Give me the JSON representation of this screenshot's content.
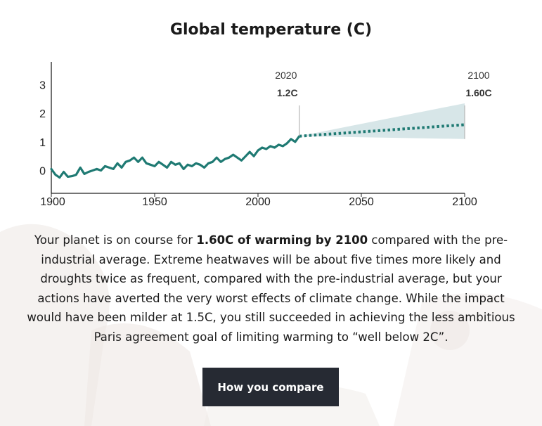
{
  "title": "Global temperature (C)",
  "colors": {
    "series": "#1f7a73",
    "band": "#d3e3e5",
    "axis": "#222222",
    "button_bg": "#262a33"
  },
  "annotations": [
    {
      "year": "2020",
      "value": "1.2C"
    },
    {
      "year": "2100",
      "value": "1.60C"
    }
  ],
  "chart_data": {
    "type": "line",
    "title": "Global temperature (C)",
    "xlabel": "",
    "ylabel": "",
    "xlim": [
      1900,
      2100
    ],
    "ylim": [
      -0.8,
      3.8
    ],
    "x_ticks": [
      "1900",
      "1950",
      "2000",
      "2050",
      "2100"
    ],
    "y_ticks": [
      "0",
      "1",
      "2",
      "3"
    ],
    "grid": false,
    "series": [
      {
        "style": "solid",
        "x": [
          1900,
          1902,
          1904,
          1906,
          1908,
          1910,
          1912,
          1914,
          1916,
          1918,
          1920,
          1922,
          1924,
          1926,
          1928,
          1930,
          1932,
          1934,
          1936,
          1938,
          1940,
          1942,
          1944,
          1946,
          1948,
          1950,
          1952,
          1954,
          1956,
          1958,
          1960,
          1962,
          1964,
          1966,
          1968,
          1970,
          1972,
          1974,
          1976,
          1978,
          1980,
          1982,
          1984,
          1986,
          1988,
          1990,
          1992,
          1994,
          1996,
          1998,
          2000,
          2002,
          2004,
          2006,
          2008,
          2010,
          2012,
          2014,
          2016,
          2018,
          2020
        ],
        "y": [
          0.05,
          -0.15,
          -0.25,
          -0.05,
          -0.22,
          -0.2,
          -0.15,
          0.1,
          -0.12,
          -0.05,
          0.0,
          0.05,
          0.0,
          0.15,
          0.1,
          0.05,
          0.25,
          0.1,
          0.3,
          0.35,
          0.45,
          0.3,
          0.45,
          0.25,
          0.2,
          0.15,
          0.3,
          0.2,
          0.1,
          0.3,
          0.2,
          0.25,
          0.05,
          0.2,
          0.15,
          0.25,
          0.2,
          0.1,
          0.25,
          0.3,
          0.45,
          0.3,
          0.4,
          0.45,
          0.55,
          0.45,
          0.35,
          0.5,
          0.65,
          0.5,
          0.7,
          0.8,
          0.75,
          0.85,
          0.8,
          0.9,
          0.85,
          0.95,
          1.1,
          1.0,
          1.2
        ]
      },
      {
        "style": "dotted",
        "x": [
          2020,
          2100
        ],
        "y": [
          1.2,
          1.6
        ]
      }
    ],
    "band": {
      "x": [
        2020,
        2100
      ],
      "upper": [
        1.2,
        2.35
      ],
      "lower": [
        1.2,
        1.1
      ]
    }
  },
  "paragraph": {
    "part1": "Your planet is on course for ",
    "bold": "1.60C of warming by 2100",
    "part2": " compared with the pre-industrial average. Extreme heatwaves will be about five times more likely and droughts twice as frequent, compared with the pre-industrial average, but your actions have averted the very worst effects of climate change. While the impact would have been milder at 1.5C, you still succeeded in achieving the less ambitious Paris agreement goal of limiting warming to “well below 2C”."
  },
  "button": {
    "label": "How you compare"
  }
}
